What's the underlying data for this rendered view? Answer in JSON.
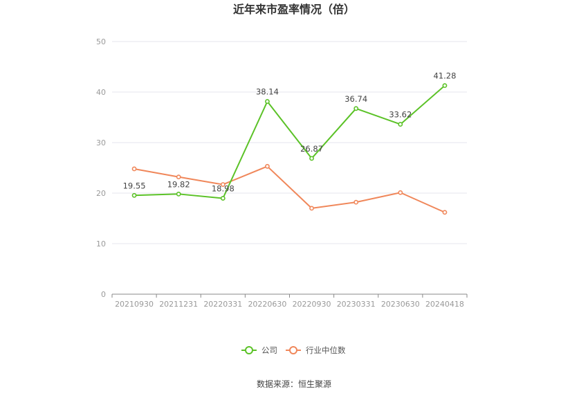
{
  "chart_data": {
    "type": "line",
    "title": "近年来市盈率情况（倍）",
    "categories": [
      "20210930",
      "20211231",
      "20220331",
      "20220630",
      "20220930",
      "20230331",
      "20230630",
      "20240418"
    ],
    "series": [
      {
        "name": "公司",
        "values": [
          19.55,
          19.82,
          18.98,
          38.14,
          26.87,
          36.74,
          33.62,
          41.28
        ],
        "labels": [
          "19.55",
          "19.82",
          "18.98",
          "38.14",
          "26.87",
          "36.74",
          "33.62",
          "41.28"
        ],
        "color": "#5bc227"
      },
      {
        "name": "行业中位数",
        "values": [
          24.8,
          23.2,
          21.7,
          25.3,
          17.0,
          18.2,
          20.1,
          16.2
        ],
        "color": "#f0875a"
      }
    ],
    "yticks": [
      "0",
      "10",
      "20",
      "30",
      "40",
      "50"
    ],
    "ylim": [
      0,
      50
    ],
    "grid": true,
    "legend_position": "bottom-center",
    "source": "数据来源：恒生聚源",
    "colors": {
      "grid": "#e6e6ee",
      "axis": "#888888"
    }
  }
}
